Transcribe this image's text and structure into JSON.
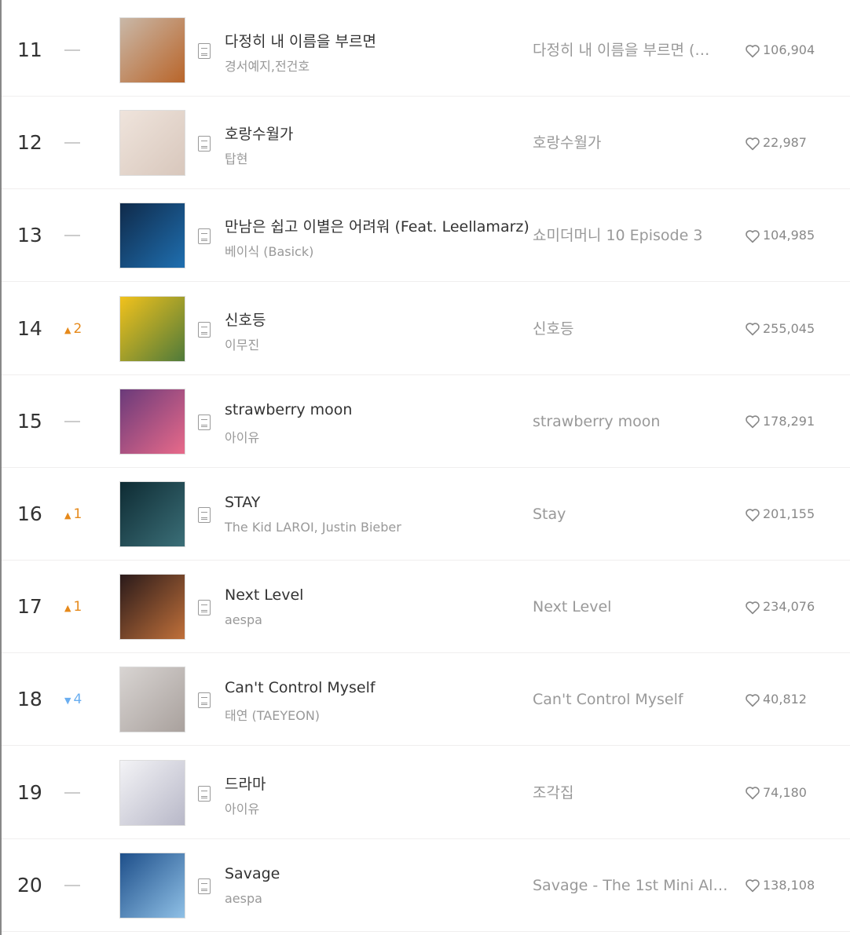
{
  "chart": {
    "rows": [
      {
        "rank": "11",
        "change": "same",
        "change_value": "",
        "title": "다정히 내 이름을 부르면",
        "artist": "경서예지,전건호",
        "album": "다정히 내 이름을 부르면 (…",
        "likes": "106,904",
        "art_colors": [
          "#c9b8a8",
          "#b9652a"
        ]
      },
      {
        "rank": "12",
        "change": "same",
        "change_value": "",
        "title": "호랑수월가",
        "artist": "탑현",
        "album": "호랑수월가",
        "likes": "22,987",
        "art_colors": [
          "#efe4dc",
          "#d8c7bc"
        ]
      },
      {
        "rank": "13",
        "change": "same",
        "change_value": "",
        "title": "만남은 쉽고 이별은 어려워 (Feat. Leellamarz)",
        "artist": "베이식 (Basick)",
        "album": "쇼미더머니 10 Episode 3",
        "likes": "104,985",
        "art_colors": [
          "#0f2a4a",
          "#1f6fb0"
        ]
      },
      {
        "rank": "14",
        "change": "up",
        "change_value": "2",
        "title": "신호등",
        "artist": "이무진",
        "album": "신호등",
        "likes": "255,045",
        "art_colors": [
          "#f2c21c",
          "#4f7a3a"
        ]
      },
      {
        "rank": "15",
        "change": "same",
        "change_value": "",
        "title": "strawberry moon",
        "artist": "아이유",
        "album": "strawberry moon",
        "likes": "178,291",
        "art_colors": [
          "#6a3a7a",
          "#e86a8a"
        ]
      },
      {
        "rank": "16",
        "change": "up",
        "change_value": "1",
        "title": "STAY",
        "artist": "The Kid LAROI, Justin Bieber",
        "album": "Stay",
        "likes": "201,155",
        "art_colors": [
          "#0e2b33",
          "#3b6f78"
        ]
      },
      {
        "rank": "17",
        "change": "up",
        "change_value": "1",
        "title": "Next Level",
        "artist": "aespa",
        "album": "Next Level",
        "likes": "234,076",
        "art_colors": [
          "#2a1a1a",
          "#c0703a"
        ]
      },
      {
        "rank": "18",
        "change": "down",
        "change_value": "4",
        "title": "Can't Control Myself",
        "artist": "태연 (TAEYEON)",
        "album": "Can't Control Myself",
        "likes": "40,812",
        "art_colors": [
          "#d8d4d2",
          "#a9a19d"
        ]
      },
      {
        "rank": "19",
        "change": "same",
        "change_value": "",
        "title": "드라마",
        "artist": "아이유",
        "album": "조각집",
        "likes": "74,180",
        "art_colors": [
          "#f3f3f6",
          "#b8b8c8"
        ]
      },
      {
        "rank": "20",
        "change": "same",
        "change_value": "",
        "title": "Savage",
        "artist": "aespa",
        "album": "Savage - The 1st Mini Al…",
        "likes": "138,108",
        "art_colors": [
          "#1e4f8a",
          "#8fc0e6"
        ]
      }
    ]
  },
  "colors": {
    "up": "#e6891a",
    "down": "#6aaef0",
    "text": "#333333",
    "muted": "#999999"
  },
  "icons": {
    "lyrics": "lyrics-document-icon",
    "like": "heart-outline-icon",
    "same": "dash-icon",
    "up": "triangle-up-icon",
    "down": "triangle-down-icon"
  }
}
